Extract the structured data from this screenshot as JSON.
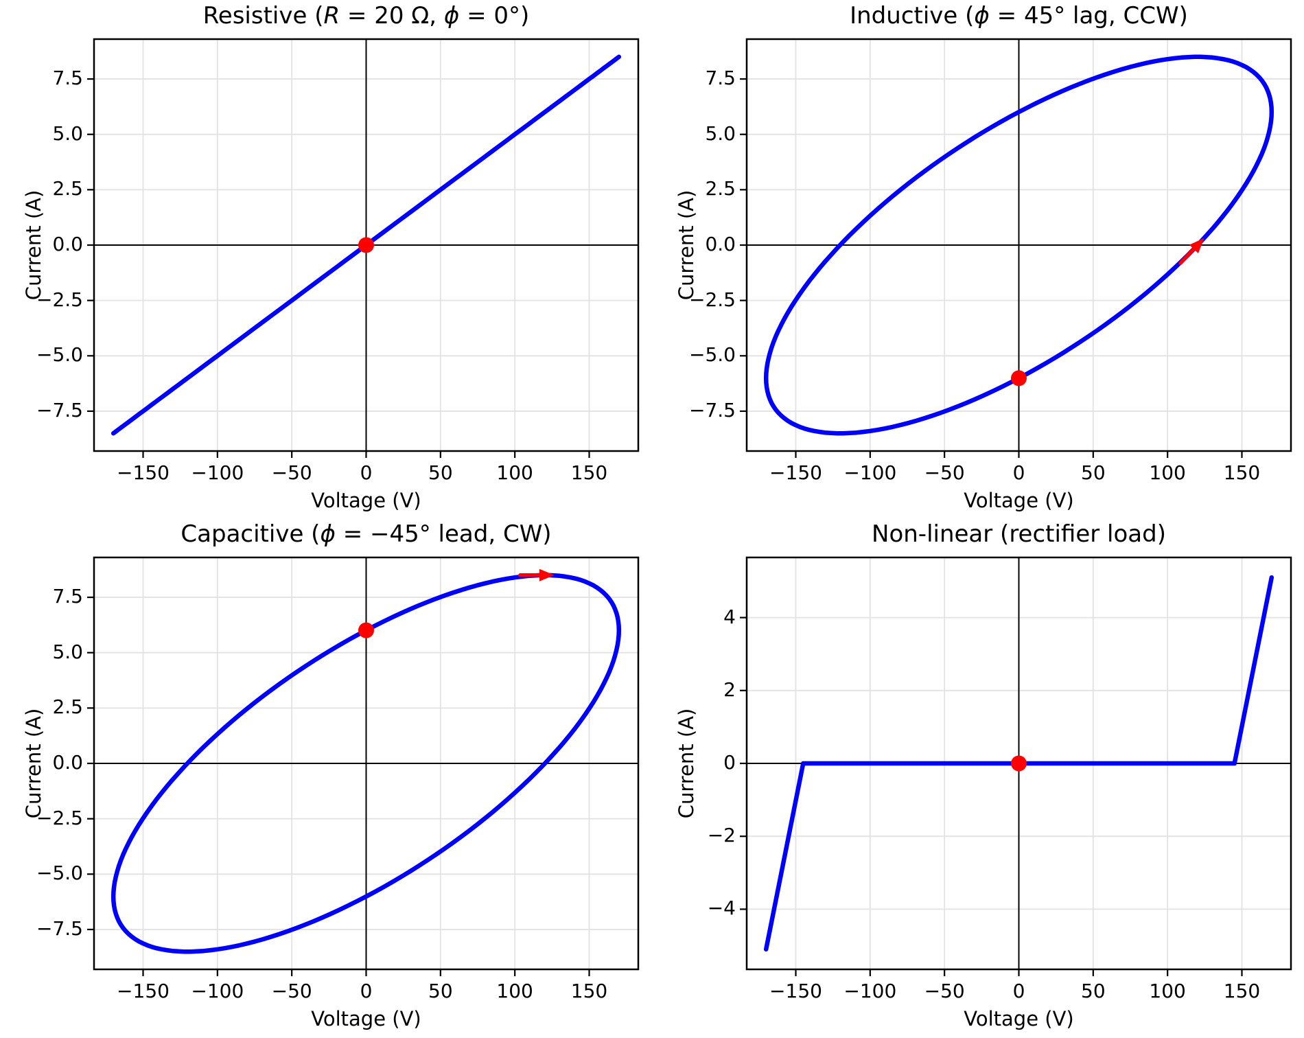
{
  "figure": {
    "background": "#ffffff",
    "kind": "2x2 subplot grid of voltage-current Lissajous figures"
  },
  "colors": {
    "curve": "#0000ff",
    "marker": "#ff0000",
    "arrow": "#ff0000",
    "zero_axis": "#000000",
    "spine": "#000000",
    "grid": "#e2e2e2",
    "text": "#000000"
  },
  "chart_data": [
    {
      "id": "resistive",
      "type": "line",
      "title": "Resistive (R = 20 Ω, ϕ = 0°)",
      "title_parts": [
        {
          "text": "Resistive (",
          "italic": false
        },
        {
          "text": "R",
          "italic": true
        },
        {
          "text": " = 20 Ω, ",
          "italic": false
        },
        {
          "text": "ϕ",
          "italic": true
        },
        {
          "text": " = 0°)",
          "italic": false
        }
      ],
      "xlabel": "Voltage (V)",
      "ylabel": "Current (A)",
      "xlim": [
        -183,
        183
      ],
      "ylim": [
        -9.3,
        9.3
      ],
      "xticks": [
        -150,
        -100,
        -50,
        0,
        50,
        100,
        150
      ],
      "xtick_labels": [
        "−150",
        "−100",
        "−50",
        "0",
        "50",
        "100",
        "150"
      ],
      "yticks": [
        -7.5,
        -5.0,
        -2.5,
        0.0,
        2.5,
        5.0,
        7.5
      ],
      "ytick_labels": [
        "−7.5",
        "−5.0",
        "−2.5",
        "0.0",
        "2.5",
        "5.0",
        "7.5"
      ],
      "grid": true,
      "zero_axlines": true,
      "curve": {
        "model": "sinusoid",
        "v_peak": 170,
        "i_peak": 8.5,
        "phase_deg": 0,
        "relation": "i = v / 20"
      },
      "marker": {
        "v": 0,
        "i": 0
      },
      "arrow": null
    },
    {
      "id": "inductive",
      "type": "line",
      "title": "Inductive (ϕ = 45° lag, CCW)",
      "title_parts": [
        {
          "text": "Inductive (",
          "italic": false
        },
        {
          "text": "ϕ",
          "italic": true
        },
        {
          "text": " = 45° lag, CCW)",
          "italic": false
        }
      ],
      "xlabel": "Voltage (V)",
      "ylabel": "Current (A)",
      "xlim": [
        -183,
        183
      ],
      "ylim": [
        -9.3,
        9.3
      ],
      "xticks": [
        -150,
        -100,
        -50,
        0,
        50,
        100,
        150
      ],
      "xtick_labels": [
        "−150",
        "−100",
        "−50",
        "0",
        "50",
        "100",
        "150"
      ],
      "yticks": [
        -7.5,
        -5.0,
        -2.5,
        0.0,
        2.5,
        5.0,
        7.5
      ],
      "ytick_labels": [
        "−7.5",
        "−5.0",
        "−2.5",
        "0.0",
        "2.5",
        "5.0",
        "7.5"
      ],
      "grid": true,
      "zero_axlines": true,
      "curve": {
        "model": "sinusoid",
        "v_peak": 170,
        "i_peak": 8.5,
        "phase_deg": -45,
        "relation": "i lags v by 45°"
      },
      "marker": {
        "v": 0,
        "i": -6.01
      },
      "arrow": {
        "v": 120.2,
        "i": 0.0,
        "dir_v": 120.2,
        "dir_i": 8.5
      }
    },
    {
      "id": "capacitive",
      "type": "line",
      "title": "Capacitive (ϕ = −45° lead, CW)",
      "title_parts": [
        {
          "text": "Capacitive (",
          "italic": false
        },
        {
          "text": "ϕ",
          "italic": true
        },
        {
          "text": " = −45° lead, CW)",
          "italic": false
        }
      ],
      "xlabel": "Voltage (V)",
      "ylabel": "Current (A)",
      "xlim": [
        -183,
        183
      ],
      "ylim": [
        -9.3,
        9.3
      ],
      "xticks": [
        -150,
        -100,
        -50,
        0,
        50,
        100,
        150
      ],
      "xtick_labels": [
        "−150",
        "−100",
        "−50",
        "0",
        "50",
        "100",
        "150"
      ],
      "yticks": [
        -7.5,
        -5.0,
        -2.5,
        0.0,
        2.5,
        5.0,
        7.5
      ],
      "ytick_labels": [
        "−7.5",
        "−5.0",
        "−2.5",
        "0.0",
        "2.5",
        "5.0",
        "7.5"
      ],
      "grid": true,
      "zero_axlines": true,
      "curve": {
        "model": "sinusoid",
        "v_peak": 170,
        "i_peak": 8.5,
        "phase_deg": 45,
        "relation": "i leads v by 45°"
      },
      "marker": {
        "v": 0,
        "i": 6.01
      },
      "arrow": {
        "v": 120.2,
        "i": 8.5,
        "dir_v": 120.2,
        "dir_i": 0
      }
    },
    {
      "id": "nonlinear",
      "type": "line",
      "title": "Non-linear (rectifier load)",
      "title_parts": [
        {
          "text": "Non-linear (rectifier load)",
          "italic": false
        }
      ],
      "xlabel": "Voltage (V)",
      "ylabel": "Current (A)",
      "xlim": [
        -183,
        183
      ],
      "ylim": [
        -5.65,
        5.65
      ],
      "xticks": [
        -150,
        -100,
        -50,
        0,
        50,
        100,
        150
      ],
      "xtick_labels": [
        "−150",
        "−100",
        "−50",
        "0",
        "50",
        "100",
        "150"
      ],
      "yticks": [
        -4,
        -2,
        0,
        2,
        4
      ],
      "ytick_labels": [
        "−4",
        "−2",
        "0",
        "2",
        "4"
      ],
      "grid": true,
      "zero_axlines": true,
      "curve": {
        "model": "piecewise",
        "points": [
          [
            -170,
            -5.1
          ],
          [
            -145,
            0
          ],
          [
            145,
            0
          ],
          [
            170,
            5.1
          ]
        ],
        "relation": "conduction threshold ±145 V"
      },
      "marker": {
        "v": 0,
        "i": 0
      },
      "arrow": null
    }
  ]
}
